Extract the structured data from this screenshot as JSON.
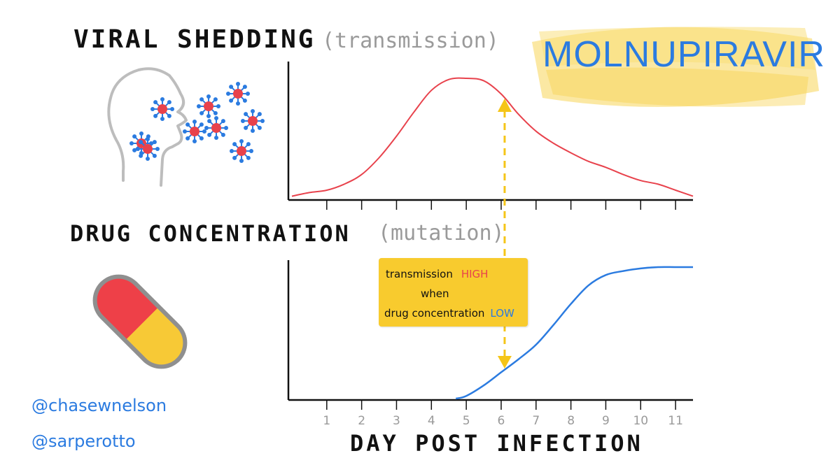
{
  "header": {
    "viral_title": "VIRAL SHEDDING",
    "viral_sub": "(transmission)",
    "drug_title": "DRUG CONCENTRATION",
    "drug_sub": "(mutation)",
    "drug_name": "MOLNUPIRAVIR"
  },
  "note": {
    "line1": "transmission",
    "high": "HIGH",
    "line2": "when",
    "line3": "drug concentration",
    "low": "LOW"
  },
  "credits": {
    "handle1": "@chasewnelson",
    "handle2": "@sarperotto"
  },
  "colors": {
    "viral": "#e8424c",
    "drug": "#2b7be0",
    "highlight": "#f5c518",
    "note_bg": "#f8cb2e"
  },
  "icons": [
    "head-icon",
    "virus-icon",
    "pill-icon"
  ],
  "chart_data": [
    {
      "type": "line",
      "title": "VIRAL SHEDDING",
      "subtitle": "(transmission)",
      "xlabel": "",
      "ylabel": "",
      "xlim": [
        -0.1,
        11.5
      ],
      "ylim": [
        0,
        1
      ],
      "x": [
        0,
        0.5,
        1,
        1.5,
        2,
        2.5,
        3,
        3.5,
        4,
        4.5,
        5,
        5.5,
        6,
        6.5,
        7,
        7.5,
        8,
        8.5,
        9,
        9.5,
        10,
        10.5,
        11,
        11.5
      ],
      "series": [
        {
          "values": [
            0.02,
            0.05,
            0.07,
            0.12,
            0.2,
            0.34,
            0.52,
            0.72,
            0.9,
            0.99,
            1.0,
            0.98,
            0.87,
            0.7,
            0.56,
            0.46,
            0.38,
            0.31,
            0.26,
            0.2,
            0.15,
            0.12,
            0.07,
            0.02
          ]
        }
      ],
      "tick_count": 11,
      "grid": false
    },
    {
      "type": "line",
      "title": "DRUG CONCENTRATION",
      "subtitle": "(mutation)",
      "xlabel": "DAY POST INFECTION",
      "ylabel": "",
      "xlim": [
        -0.1,
        11.5
      ],
      "ylim": [
        0,
        1
      ],
      "categories": [
        "1",
        "2",
        "3",
        "4",
        "5",
        "6",
        "7",
        "8",
        "9",
        "10",
        "11"
      ],
      "x": [
        4.7,
        5,
        5.5,
        6,
        6.5,
        7,
        7.5,
        8,
        8.5,
        9,
        9.5,
        10,
        10.5,
        11,
        11.5
      ],
      "series": [
        {
          "values": [
            0,
            0.02,
            0.1,
            0.2,
            0.3,
            0.41,
            0.56,
            0.72,
            0.86,
            0.94,
            0.97,
            0.99,
            1.0,
            1.0,
            1.0
          ]
        }
      ],
      "marker_x": 6.1,
      "grid": false
    }
  ]
}
